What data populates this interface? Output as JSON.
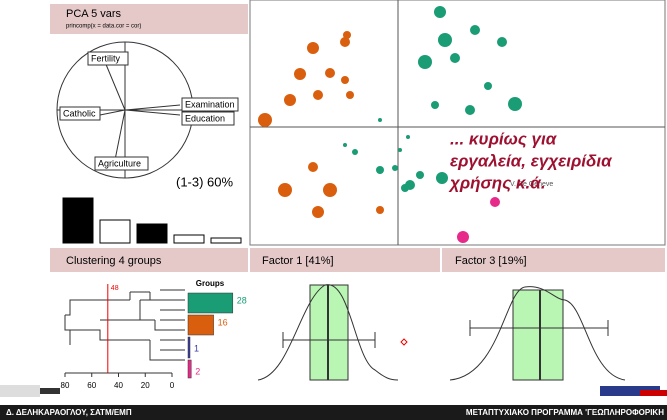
{
  "pca_panel": {
    "title": "PCA  5 vars",
    "subtitle": "princomp(x = data.cor = cor)",
    "variables": [
      "Fertility",
      "Examination",
      "Education",
      "Catholic",
      "Agriculture"
    ],
    "explained": "(1-3) 60%"
  },
  "scatter_panel": {
    "annotation_lines": [
      "... κυρίως για",
      "εργαλεία, εγχειρίδια",
      "χρήσης κ.ά."
    ],
    "point_label": "V. De Geneve"
  },
  "clustering_panel": {
    "title": "Clustering  4 groups",
    "cut_label": "48",
    "cut_value": 48,
    "axis_ticks": [
      80,
      60,
      40,
      20,
      0
    ],
    "groups_title": "Groups",
    "groups": [
      {
        "count": 28,
        "color": "#1a9c75"
      },
      {
        "count": 16,
        "color": "#d95f0e"
      },
      {
        "count": 1,
        "color": "#3a3aa0"
      },
      {
        "count": 2,
        "color": "#e7298a"
      }
    ]
  },
  "factor1": {
    "title": "Factor 1 [41%]"
  },
  "factor3": {
    "title": "Factor 3 [19%]"
  },
  "footer": {
    "left": "Δ. ΔΕΛΗΚΑΡΑΟΓΛΟΥ, ΣΑΤΜ/ΕΜΠ",
    "right": "ΜΕΤΑΠΤΥΧΙΑΚΟ ΠΡΟΓΡΑΜΜΑ 'ΓΕΩΠΛΗΡΟΦΟΡΙΚΗ"
  }
}
